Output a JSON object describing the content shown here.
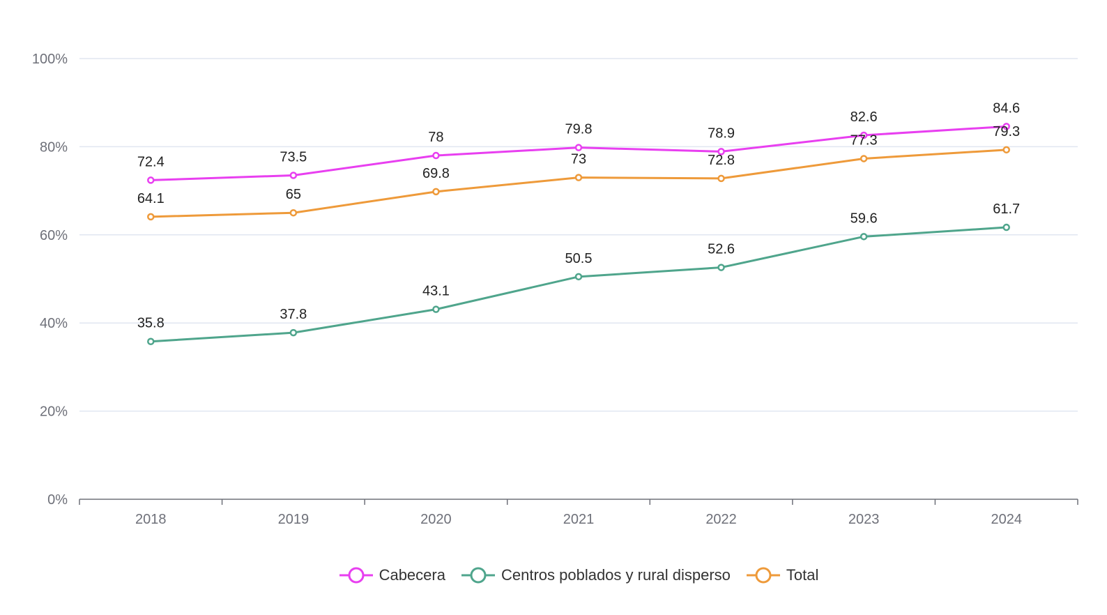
{
  "chart_data": {
    "type": "line",
    "categories": [
      "2018",
      "2019",
      "2020",
      "2021",
      "2022",
      "2023",
      "2024"
    ],
    "y_ticks": [
      "0%",
      "20%",
      "40%",
      "60%",
      "80%",
      "100%"
    ],
    "ylim": [
      0,
      100
    ],
    "grid": true,
    "legend_placement": "bottom",
    "series": [
      {
        "name": "Cabecera",
        "color": "#e83ff0",
        "values": [
          72.4,
          73.5,
          78,
          79.8,
          78.9,
          82.6,
          84.6
        ]
      },
      {
        "name": "Centros poblados y rural disperso",
        "color": "#4fa58c",
        "values": [
          35.8,
          37.8,
          43.1,
          50.5,
          52.6,
          59.6,
          61.7
        ]
      },
      {
        "name": "Total",
        "color": "#ee9a3a",
        "values": [
          64.1,
          65,
          69.8,
          73,
          72.8,
          77.3,
          79.3
        ]
      }
    ]
  }
}
